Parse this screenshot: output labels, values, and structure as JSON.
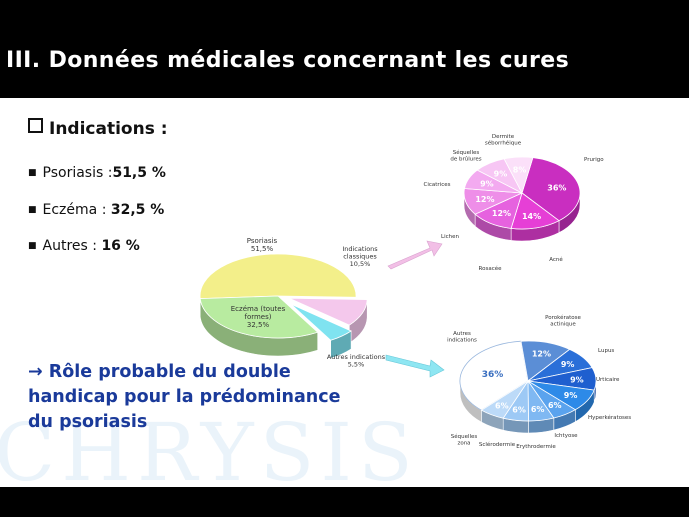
{
  "title": "III. Données médicales concernant les cures",
  "indications": {
    "heading": "Indications :",
    "items": [
      {
        "label": "Psoriasis :",
        "value": "51,5 %"
      },
      {
        "label": "Eczéma : ",
        "value": "32,5 %"
      },
      {
        "label": "Autres : ",
        "value": "16 %"
      }
    ]
  },
  "conclusion": "→ Rôle probable du double handicap pour la prédominance du psoriasis",
  "colors": {
    "psoriasis": "#f3ef8a",
    "eczema": "#b8eba0",
    "classiques": "#f4c8ec",
    "autres": "#7fe3f0",
    "arrow_pink": "#f2bfe6",
    "arrow_cyan": "#8ee6f2",
    "text_blue": "#1a3a9a"
  },
  "chart_data": [
    {
      "type": "pie",
      "slices": [
        {
          "label": "Psoriasis",
          "value": 51.5,
          "value_label": "51,5%"
        },
        {
          "label": "Indications classiques",
          "value": 10.5,
          "value_label": "10,5%"
        },
        {
          "label": "Autres indications",
          "value": 5.5,
          "value_label": "5,5%"
        },
        {
          "label": "Eczéma (toutes formes)",
          "value": 32.5,
          "value_label": "32,5%"
        }
      ]
    },
    {
      "type": "pie",
      "slices": [
        {
          "label": "Prurigo",
          "value": 36,
          "value_label": "36%"
        },
        {
          "label": "Acné",
          "value": 14,
          "value_label": "14%"
        },
        {
          "label": "Rosacée",
          "value": 12,
          "value_label": "12%"
        },
        {
          "label": "Lichen",
          "value": 12,
          "value_label": "12%"
        },
        {
          "label": "Cicatrices",
          "value": 9,
          "value_label": "9%"
        },
        {
          "label": "Séquelles de brûlures",
          "value": 9,
          "value_label": "9%"
        },
        {
          "label": "Dermite séborrhéique",
          "value": 8,
          "value_label": "8%"
        }
      ]
    },
    {
      "type": "pie",
      "slices": [
        {
          "label": "Autres indications",
          "value": 36,
          "value_label": "36%"
        },
        {
          "label": "Porokératose actinique",
          "value": 12,
          "value_label": "12%"
        },
        {
          "label": "Lupus",
          "value": 9,
          "value_label": "9%"
        },
        {
          "label": "Urticaire",
          "value": 9,
          "value_label": "9%"
        },
        {
          "label": "Hyperkératoses",
          "value": 9,
          "value_label": "9%"
        },
        {
          "label": "Ichtyose",
          "value": 6,
          "value_label": "6%"
        },
        {
          "label": "Erythrodermie",
          "value": 6,
          "value_label": "6%"
        },
        {
          "label": "Sclérodermie",
          "value": 6,
          "value_label": "6%"
        },
        {
          "label": "Séquelles zona",
          "value": 6,
          "value_label": "6%"
        }
      ]
    }
  ]
}
